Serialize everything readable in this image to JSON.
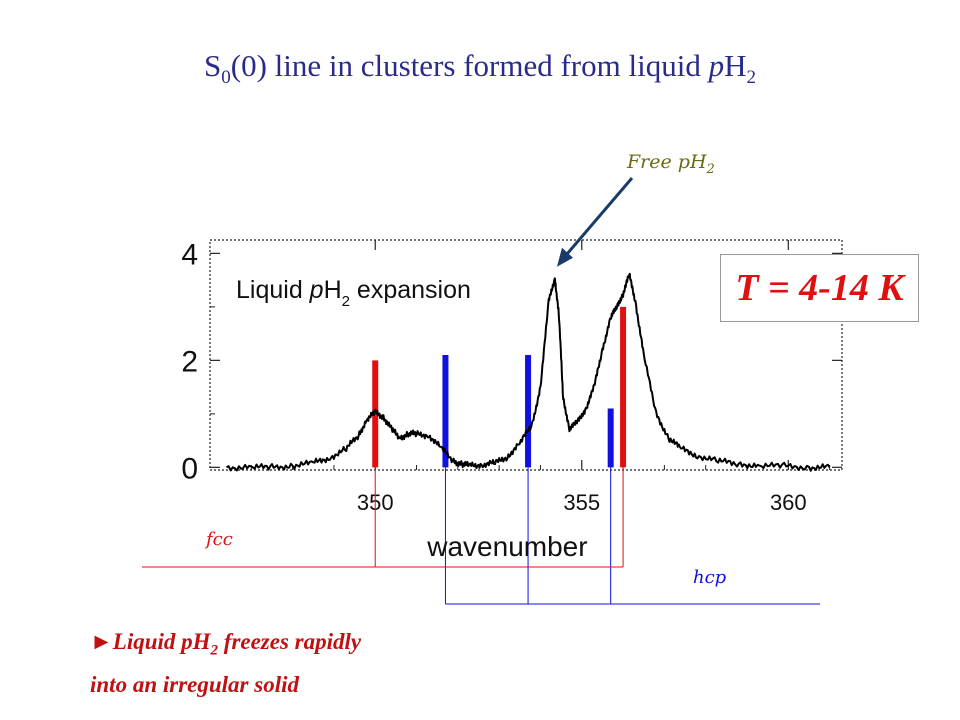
{
  "title": {
    "prefix": "S",
    "sub": "0",
    "mid": "(0) line in clusters formed from liquid ",
    "italic_p": "p",
    "h": "H",
    "sub2": "2"
  },
  "chart_data": {
    "type": "line",
    "xlabel": "wavenumber",
    "ylabel": "",
    "xlim": [
      346,
      361.3
    ],
    "ylim": [
      -0.05,
      4.25
    ],
    "xticks": [
      350,
      355,
      360
    ],
    "yticks": [
      0,
      2,
      4
    ],
    "grid": false,
    "annotation": {
      "label_main": "Liquid ",
      "label_italic": "p",
      "label_h": "H",
      "label_sub": "2",
      "label_rest": " expansion"
    },
    "series": [
      {
        "x": [
          346.4,
          347.0,
          347.5,
          348.0,
          348.5,
          348.9,
          349.3,
          349.6,
          349.8,
          350.0,
          350.2,
          350.4,
          350.6,
          350.8,
          351.0,
          351.3,
          351.6,
          351.9,
          352.1,
          352.3,
          352.6,
          352.9,
          353.2,
          353.5,
          353.8,
          354.0,
          354.2,
          354.35,
          354.45,
          354.55,
          354.7,
          354.9,
          355.1,
          355.3,
          355.5,
          355.7,
          355.85,
          356.0,
          356.15,
          356.3,
          356.5,
          356.8,
          357.1,
          357.4,
          357.8,
          358.3,
          358.8,
          359.3,
          359.9,
          360.5,
          361.0
        ],
        "y": [
          0,
          0,
          0,
          0.03,
          0.08,
          0.18,
          0.35,
          0.6,
          0.9,
          1.02,
          0.95,
          0.7,
          0.55,
          0.63,
          0.62,
          0.6,
          0.35,
          0.12,
          0.05,
          0.04,
          0.05,
          0.08,
          0.2,
          0.45,
          0.8,
          1.5,
          3.1,
          3.55,
          2.8,
          1.3,
          0.72,
          0.85,
          1.1,
          1.5,
          2.2,
          2.8,
          3.0,
          3.25,
          3.6,
          3.1,
          2.1,
          1.0,
          0.55,
          0.35,
          0.22,
          0.12,
          0.06,
          0.03,
          0.02,
          0,
          0
        ]
      }
    ],
    "markers": [
      {
        "x": 350.0,
        "top": 2.0,
        "color": "#e01010",
        "lattice": "fcc"
      },
      {
        "x": 351.7,
        "top": 2.1,
        "color": "#1010e0",
        "lattice": "hcp"
      },
      {
        "x": 353.7,
        "top": 2.1,
        "color": "#1010e0",
        "lattice": "hcp"
      },
      {
        "x": 355.7,
        "top": 1.1,
        "color": "#1010e0",
        "lattice": "hcp"
      },
      {
        "x": 356.0,
        "top": 3.0,
        "color": "#e01010",
        "lattice": "fcc"
      }
    ],
    "arrow_label": "Free pH",
    "arrow_label_sub": "2",
    "arrow_target_x": 354.4,
    "lattice_labels": {
      "fcc": "fcc",
      "hcp": "hcp"
    },
    "colors": {
      "fcc": "#e01010",
      "hcp": "#1010e0",
      "arrow": "#1a3a6a",
      "trace": "#000000"
    }
  },
  "temperature": "T = 4-14 K",
  "conclusion": {
    "bullet": "►",
    "line1_a": "Liquid pH",
    "line1_sub": "2",
    "line1_b": " freezes rapidly",
    "line2": "into an irregular solid"
  }
}
